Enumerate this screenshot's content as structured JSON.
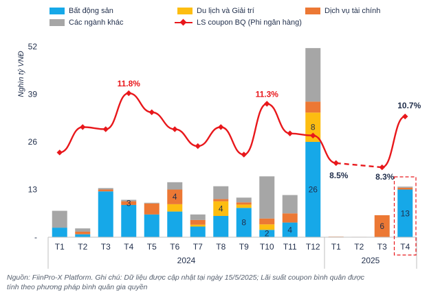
{
  "chart_data": {
    "type": "bar",
    "stacked": true,
    "ylabel": "Nghìn tỷ VNĐ",
    "ylim": [
      0,
      52
    ],
    "yticks": [
      "-",
      "13",
      "26",
      "39",
      "52"
    ],
    "ytick_values": [
      0,
      13,
      26,
      39,
      52
    ],
    "grid": false,
    "legend_position": "top",
    "categories": [
      "T1",
      "T2",
      "T3",
      "T4",
      "T5",
      "T6",
      "T7",
      "T8",
      "T9",
      "T10",
      "T11",
      "T12",
      "T1",
      "T2",
      "T3",
      "T4"
    ],
    "groups": [
      {
        "label": "2024",
        "categories": 12
      },
      {
        "label": "2025",
        "categories": 4
      }
    ],
    "series": [
      {
        "name": "Bất động sản",
        "color": "#16a8e8",
        "values": [
          2.6,
          0.8,
          12.5,
          8.8,
          6.2,
          7.0,
          2.9,
          5.8,
          8.0,
          2.0,
          4.0,
          26.0,
          0,
          0,
          0,
          13.0
        ]
      },
      {
        "name": "Du lịch và Giải trí",
        "color": "#fdbd11",
        "values": [
          0,
          0,
          0,
          0,
          0,
          2.0,
          0.5,
          4.0,
          0.9,
          1.5,
          0,
          8.0,
          0,
          0,
          0,
          0
        ]
      },
      {
        "name": "Dịch vụ tài chính",
        "color": "#ec7834",
        "values": [
          0,
          0.7,
          0.5,
          1.0,
          3.0,
          4.0,
          1.3,
          0.6,
          0.6,
          1.6,
          2.5,
          3.0,
          0.15,
          0.1,
          6.0,
          0.5
        ]
      },
      {
        "name": "Các ngành khác",
        "color": "#a6a6a6",
        "values": [
          4.6,
          0.9,
          0.4,
          0.4,
          0.2,
          2.0,
          1.5,
          3.5,
          1.3,
          11.5,
          5.0,
          14.6,
          0,
          0,
          0,
          0.3
        ]
      }
    ],
    "bar_labels": [
      {
        "index": 3,
        "series": 2,
        "text": "3"
      },
      {
        "index": 5,
        "series": 2,
        "text": "4"
      },
      {
        "index": 7,
        "series": 1,
        "text": "4"
      },
      {
        "index": 8,
        "series": 0,
        "text": "8"
      },
      {
        "index": 9,
        "series": 0,
        "text": "2"
      },
      {
        "index": 10,
        "series": 0,
        "text": "4"
      },
      {
        "index": 11,
        "series": 1,
        "text": "8"
      },
      {
        "index": 11,
        "series": 0,
        "text": "26"
      },
      {
        "index": 14,
        "series": 2,
        "text": "6"
      },
      {
        "index": 15,
        "series": 0,
        "text": "13"
      }
    ],
    "line_series": {
      "name": "LS coupon BQ (Phi ngân hàng)",
      "color": "#e8171b",
      "unit": "%",
      "values": [
        9.0,
        10.2,
        10.1,
        11.8,
        10.9,
        10.1,
        9.3,
        10.2,
        8.9,
        11.3,
        9.9,
        9.8,
        8.5,
        null,
        8.3,
        10.7
      ],
      "dashed_from": 12,
      "dashed_to": 14,
      "annotations": [
        {
          "index": 3,
          "text": "11.8%",
          "color": "#e8171b"
        },
        {
          "index": 9,
          "text": "11.3%",
          "color": "#e8171b"
        },
        {
          "index": 12,
          "text": "8.5%",
          "color": "#1f2d4a"
        },
        {
          "index": 14,
          "text": "8.3%",
          "color": "#1f2d4a"
        },
        {
          "index": 15,
          "text": "10.7%",
          "color": "#1f2d4a"
        }
      ]
    },
    "highlight_index": 15,
    "highlight_color": "#e8171b"
  },
  "legend": [
    {
      "label": "Bất động sản",
      "color": "#16a8e8",
      "kind": "swatch"
    },
    {
      "label": "Du lịch và Giải trí",
      "color": "#fdbd11",
      "kind": "swatch"
    },
    {
      "label": "Dịch vụ tài chính",
      "color": "#ec7834",
      "kind": "swatch"
    },
    {
      "label": "Các ngành khác",
      "color": "#a6a6a6",
      "kind": "swatch"
    },
    {
      "label": "LS coupon BQ (Phi ngân hàng)",
      "color": "#e8171b",
      "kind": "line"
    }
  ],
  "source_note": {
    "line1": "Nguồn: FiinPro-X Platform. Ghi chú: Dữ liệu được cập nhật tại ngày 15/5/2025; Lãi suất coupon bình quân được",
    "line2": "tính theo phương pháp bình quân gia quyền"
  }
}
